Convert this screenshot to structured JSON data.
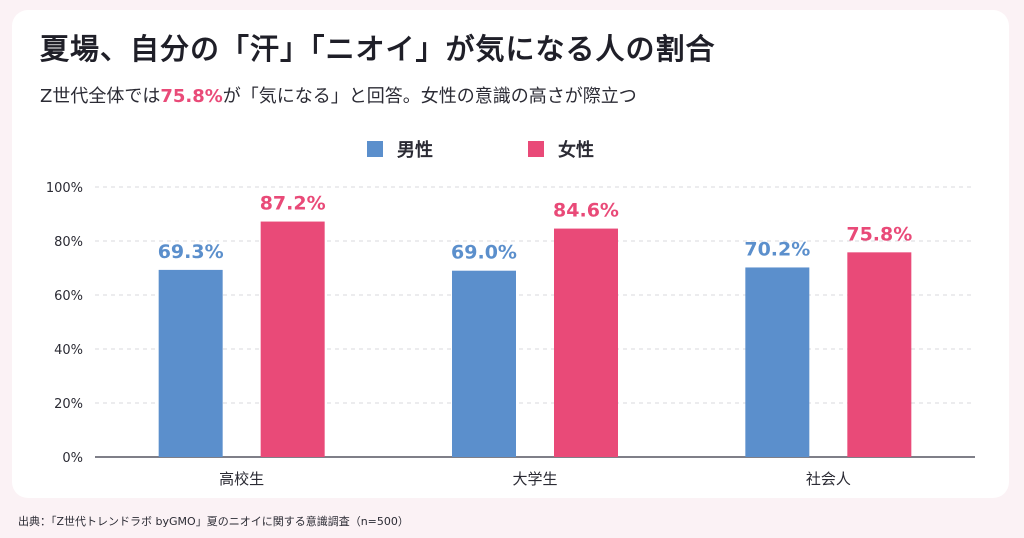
{
  "title": "夏場、自分の「汗」「ニオイ」が気になる人の割合",
  "subtitle": {
    "before": "Z世代全体では",
    "highlight": "75.8%",
    "after": "が「気になる」と回答。女性の意識の高さが際立つ"
  },
  "source": "出典：「Z世代トレンドラボ byGMO」夏のニオイに関する意識調査（n=500）",
  "colors": {
    "male": "#5b8fcc",
    "female": "#e94a78",
    "male_label": "#5b8fcc",
    "female_label": "#e94a78"
  },
  "chart_data": {
    "type": "bar",
    "categories": [
      "高校生",
      "大学生",
      "社会人"
    ],
    "series": [
      {
        "name": "男性",
        "values": [
          69.3,
          69.0,
          70.2
        ],
        "labels": [
          "69.3%",
          "69.0%",
          "70.2%"
        ]
      },
      {
        "name": "女性",
        "values": [
          87.2,
          84.6,
          75.8
        ],
        "labels": [
          "87.2%",
          "84.6%",
          "75.8%"
        ]
      }
    ],
    "ylim": [
      0,
      100
    ],
    "yticks": [
      "0%",
      "20%",
      "40%",
      "60%",
      "80%",
      "100%"
    ],
    "grid": true,
    "legend": "top-center"
  }
}
